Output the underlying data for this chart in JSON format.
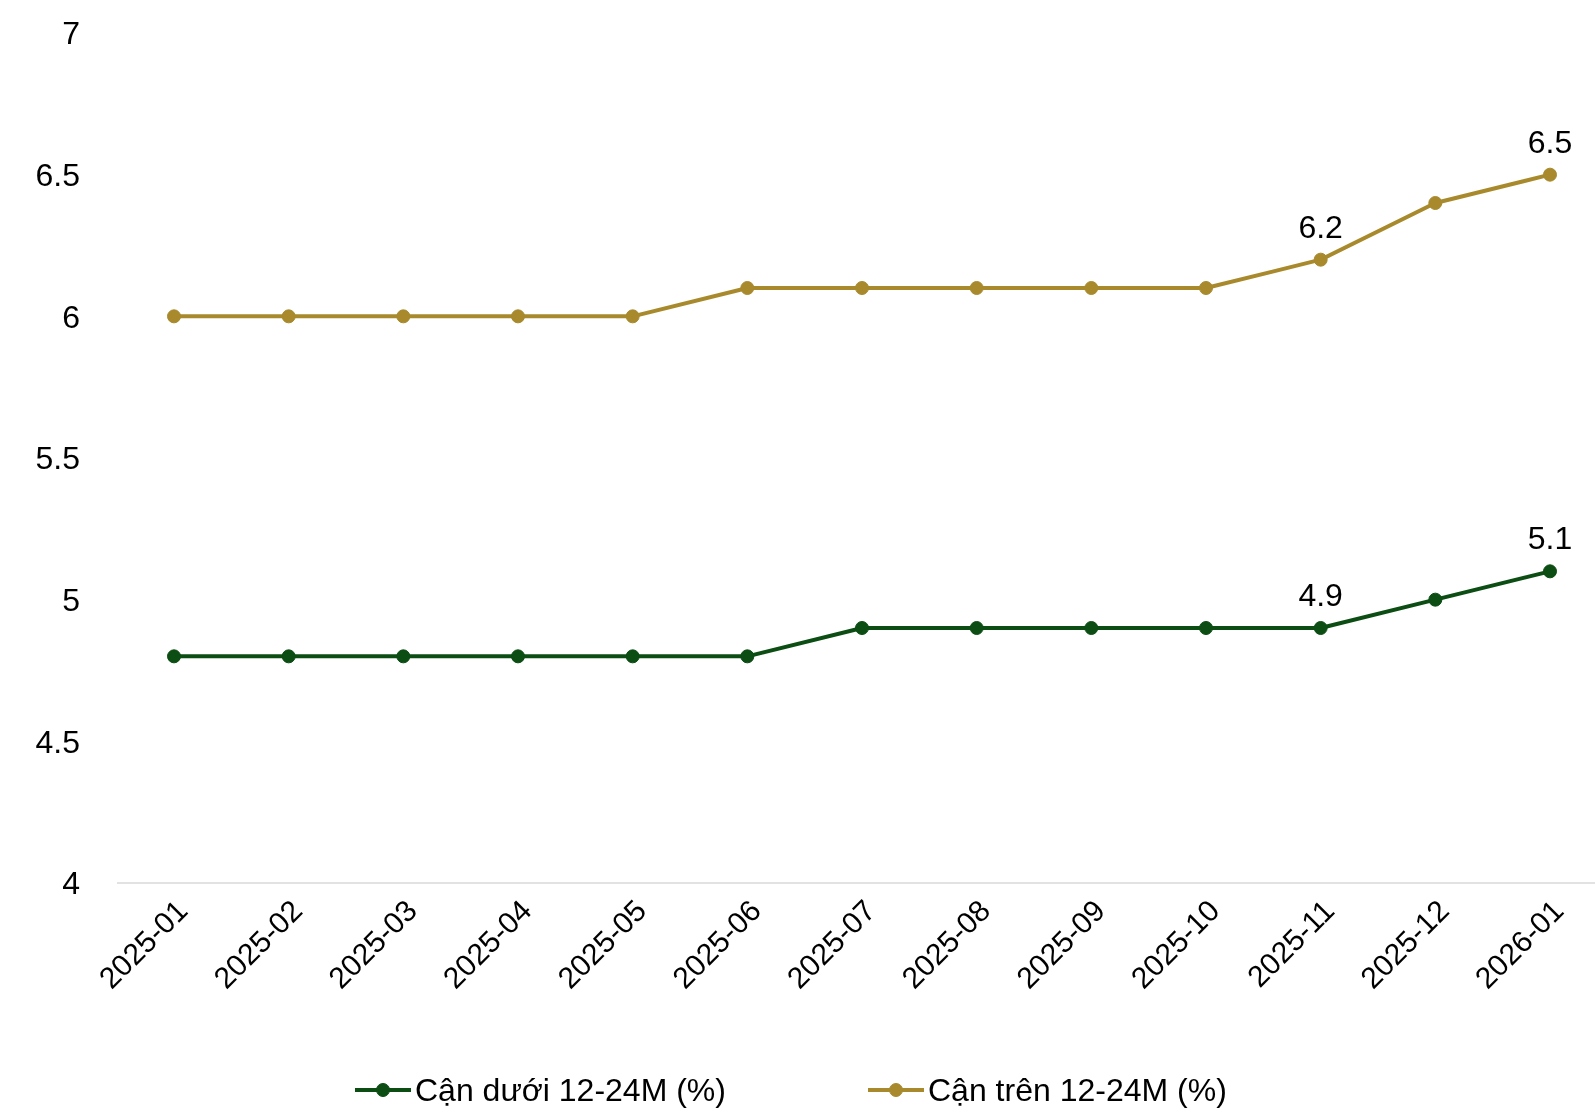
{
  "chart_data": {
    "type": "line",
    "categories": [
      "2025-01",
      "2025-02",
      "2025-03",
      "2025-04",
      "2025-05",
      "2025-06",
      "2025-07",
      "2025-08",
      "2025-09",
      "2025-10",
      "2025-11",
      "2025-12",
      "2026-01"
    ],
    "series": [
      {
        "name": "Cận dưới 12-24M (%)",
        "color": "#0b4d12",
        "values": [
          4.8,
          4.8,
          4.8,
          4.8,
          4.8,
          4.8,
          4.9,
          4.9,
          4.9,
          4.9,
          4.9,
          5.0,
          5.1
        ],
        "value_labels": [
          null,
          null,
          null,
          null,
          null,
          null,
          null,
          null,
          null,
          null,
          "4.9",
          null,
          "5.1"
        ]
      },
      {
        "name": "Cận trên 12-24M (%)",
        "color": "#a88a2c",
        "values": [
          6.0,
          6.0,
          6.0,
          6.0,
          6.0,
          6.1,
          6.1,
          6.1,
          6.1,
          6.1,
          6.2,
          6.4,
          6.5
        ],
        "value_labels": [
          null,
          null,
          null,
          null,
          null,
          null,
          null,
          null,
          null,
          null,
          "6.2",
          null,
          "6.5"
        ]
      }
    ],
    "ylim": [
      4,
      7
    ],
    "yticks": [
      4,
      4.5,
      5,
      5.5,
      6,
      6.5,
      7
    ],
    "marker": "circle",
    "line_style": "solid",
    "grid": false,
    "legend": "bottom"
  }
}
